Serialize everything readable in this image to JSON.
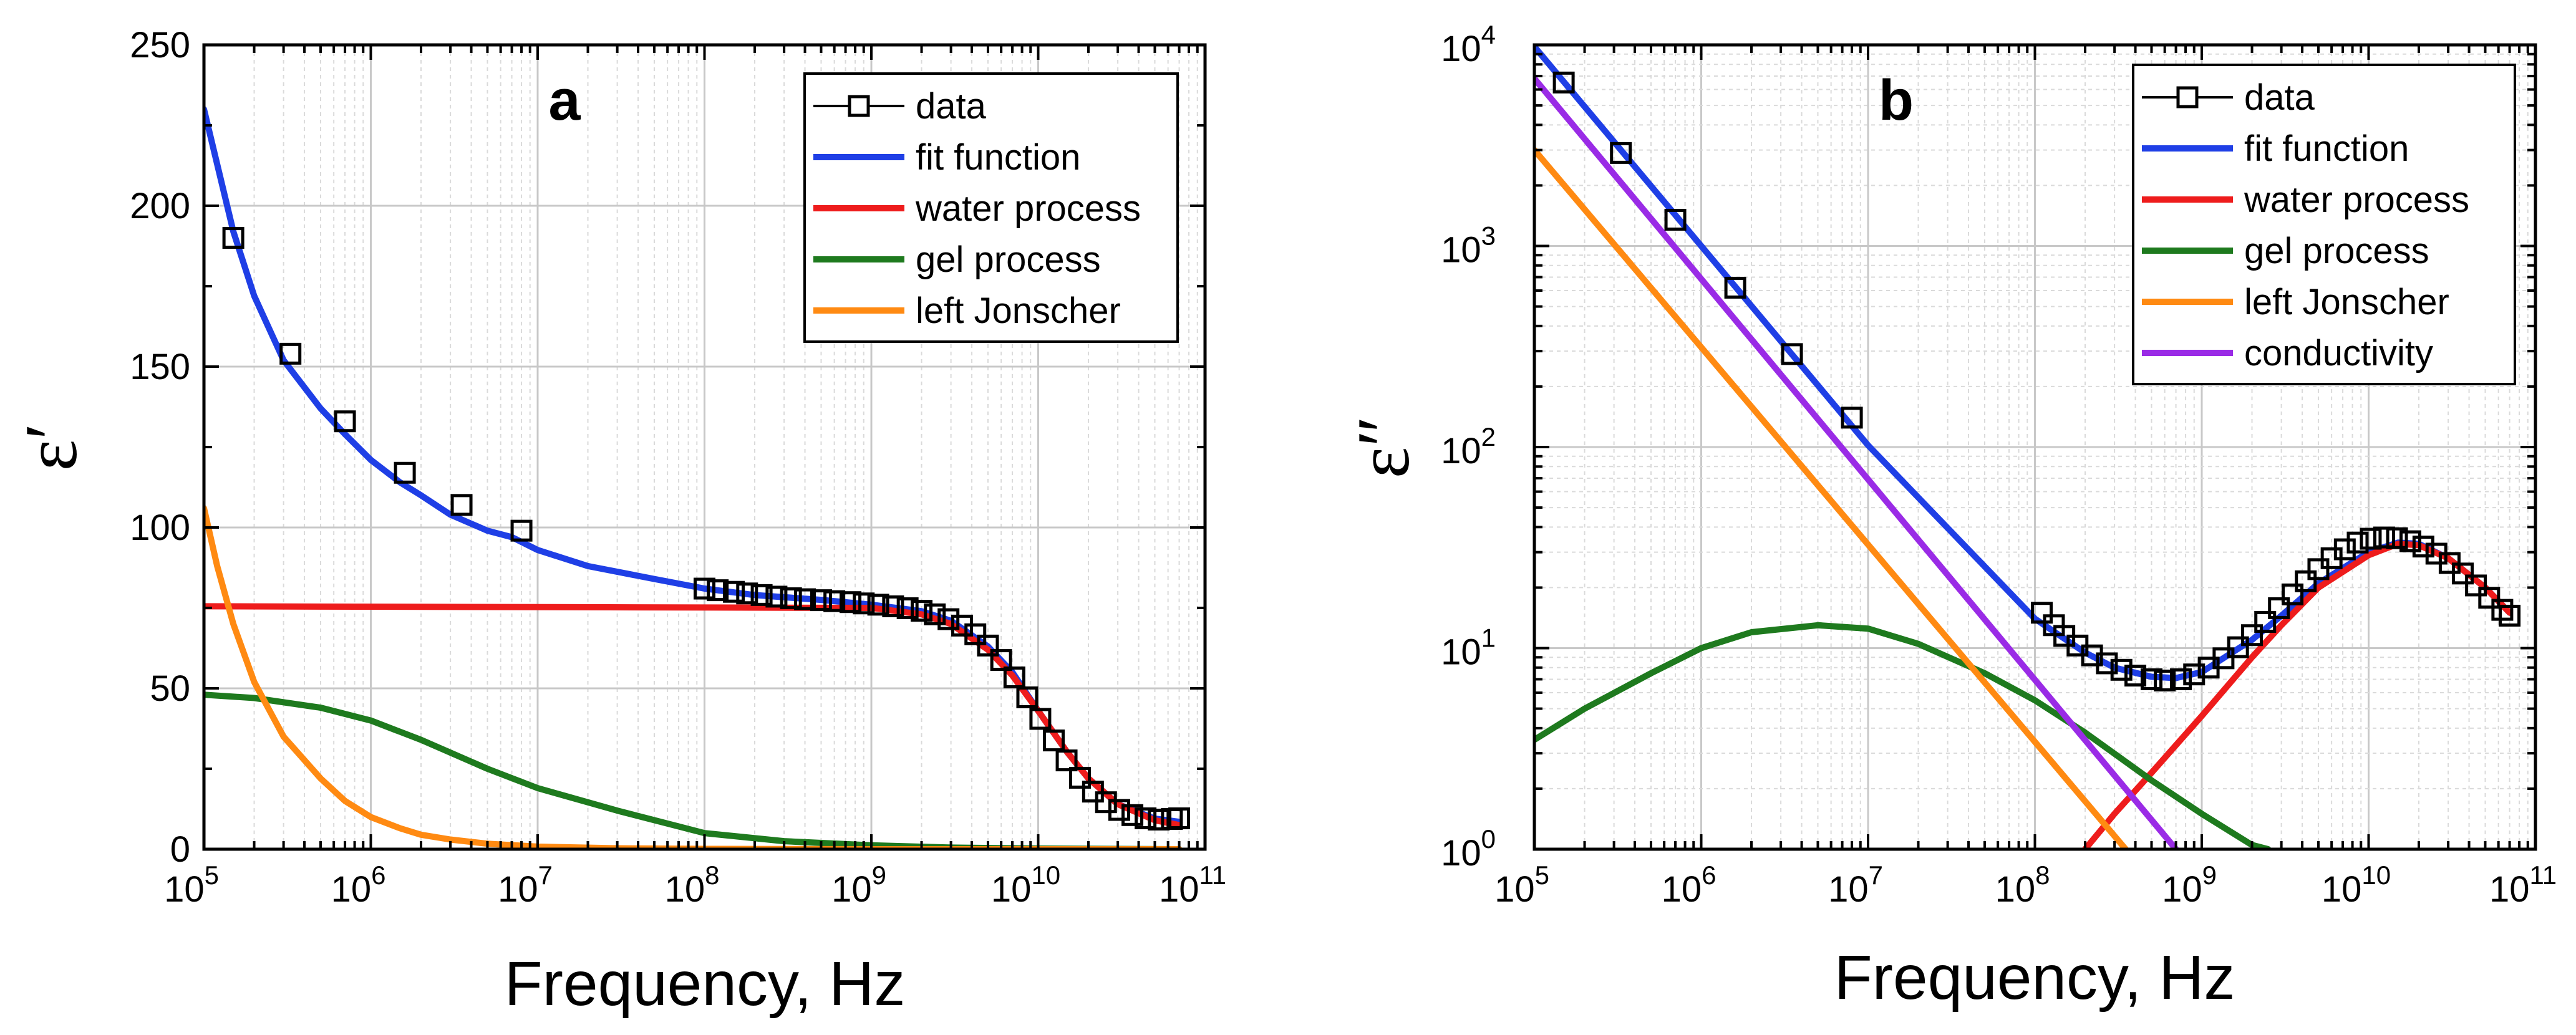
{
  "colors": {
    "data": "#000000",
    "fit": "#1f3fe6",
    "water": "#ee1c1c",
    "gel": "#1e7a1e",
    "jonscher": "#ff8a12",
    "conductivity": "#9a2be6"
  },
  "chart_data": [
    {
      "type": "line",
      "panel_label": "a",
      "xscale": "log",
      "yscale": "linear",
      "xlabel": "Frequency, Hz",
      "ylabel": "ε′",
      "xlim": [
        100000,
        100000000000
      ],
      "ylim": [
        0,
        250
      ],
      "x_ticks": [
        {
          "v": 100000,
          "base": "10",
          "exp": "5"
        },
        {
          "v": 1000000,
          "base": "10",
          "exp": "6"
        },
        {
          "v": 10000000,
          "base": "10",
          "exp": "7"
        },
        {
          "v": 100000000,
          "base": "10",
          "exp": "8"
        },
        {
          "v": 1000000000,
          "base": "10",
          "exp": "9"
        },
        {
          "v": 10000000000,
          "base": "10",
          "exp": "10"
        },
        {
          "v": 100000000000,
          "base": "10",
          "exp": "11"
        }
      ],
      "y_ticks": [
        {
          "v": 0,
          "label": "0"
        },
        {
          "v": 50,
          "label": "50"
        },
        {
          "v": 100,
          "label": "100"
        },
        {
          "v": 150,
          "label": "150"
        },
        {
          "v": 200,
          "label": "200"
        },
        {
          "v": 250,
          "label": "250"
        }
      ],
      "grid": true,
      "legend_position": "top-right",
      "legend": [
        {
          "label": "data",
          "style": "marker",
          "color_key": "data"
        },
        {
          "label": "fit function",
          "style": "line",
          "color_key": "fit"
        },
        {
          "label": "water process",
          "style": "line",
          "color_key": "water"
        },
        {
          "label": "gel process",
          "style": "line",
          "color_key": "gel"
        },
        {
          "label": "left Jonscher",
          "style": "line",
          "color_key": "jonscher"
        }
      ],
      "series": [
        {
          "name": "data",
          "style": "marker",
          "color_key": "data",
          "x": [
            150000,
            330000,
            700000,
            1600000,
            3500000,
            8000000,
            100000000,
            120000000,
            150000000,
            180000000,
            220000000,
            270000000,
            330000000,
            400000000,
            500000000,
            600000000,
            750000000,
            900000000,
            1100000000,
            1350000000,
            1650000000,
            2000000000,
            2400000000,
            2900000000,
            3500000000,
            4200000000,
            5000000000,
            6000000000,
            7200000000,
            8600000000,
            10300000000,
            12400000000,
            14800000000,
            17800000000,
            21300000000,
            25500000000,
            30600000000,
            36700000000,
            44000000000,
            52800000000,
            63300000000,
            70000000000
          ],
          "y": [
            190,
            154,
            133,
            117,
            107,
            99,
            81,
            80.5,
            80,
            79.5,
            79,
            78.5,
            78,
            77.7,
            77.4,
            77.1,
            76.8,
            76.4,
            76,
            75.5,
            74.9,
            74.1,
            73,
            71.5,
            69.5,
            66.8,
            63.3,
            58.8,
            53.4,
            47.2,
            40.5,
            33.8,
            27.6,
            22.2,
            17.9,
            14.6,
            12.2,
            10.6,
            9.6,
            9.2,
            9.4,
            9.6
          ]
        },
        {
          "name": "fit function",
          "style": "line",
          "color_key": "fit",
          "x": [
            100000,
            150000,
            200000,
            300000,
            500000,
            700000,
            1000000,
            1500000,
            2000000,
            3000000,
            5000000,
            7000000,
            10000000,
            20000000,
            50000000,
            100000000,
            200000000,
            500000000,
            1000000000,
            2000000000,
            3000000000,
            5000000000,
            7000000000,
            10000000000,
            15000000000,
            20000000000,
            30000000000,
            50000000000,
            70000000000
          ],
          "y": [
            230,
            192,
            172,
            152,
            137,
            129,
            121,
            114,
            110,
            104,
            99,
            97,
            93,
            88,
            84,
            81,
            79,
            77.5,
            76,
            74,
            71,
            63,
            55,
            43,
            30,
            22,
            14,
            9.5,
            8.5
          ]
        },
        {
          "name": "water process",
          "style": "line",
          "color_key": "water",
          "x": [
            100000,
            1000000000,
            2000000000,
            3000000000,
            5000000000,
            7000000000,
            10000000000,
            15000000000,
            20000000000,
            30000000000,
            50000000000,
            70000000000
          ],
          "y": [
            75.5,
            75,
            73,
            70,
            62,
            54,
            43,
            30,
            22,
            14,
            9,
            7.5
          ]
        },
        {
          "name": "gel process",
          "style": "line",
          "color_key": "gel",
          "x": [
            100000,
            200000,
            500000,
            1000000,
            2000000,
            5000000,
            10000000,
            30000000,
            100000000,
            300000000,
            1000000000,
            3000000000,
            10000000000,
            70000000000
          ],
          "y": [
            48,
            47,
            44,
            40,
            34,
            25,
            19,
            12,
            5,
            2.5,
            1.2,
            0.5,
            0.2,
            0
          ]
        },
        {
          "name": "left Jonscher",
          "style": "line",
          "color_key": "jonscher",
          "x": [
            100000,
            120000,
            150000,
            200000,
            300000,
            500000,
            700000,
            1000000,
            1500000,
            2000000,
            3000000,
            5000000,
            10000000,
            30000000,
            100000000,
            1000000000,
            70000000000
          ],
          "y": [
            106,
            88,
            70,
            52,
            35,
            22,
            15,
            10,
            6.5,
            4.5,
            3,
            1.7,
            0.8,
            0.3,
            0.1,
            0,
            0
          ]
        }
      ]
    },
    {
      "type": "line",
      "panel_label": "b",
      "xscale": "log",
      "yscale": "log",
      "xlabel": "Frequency, Hz",
      "ylabel": "ε″",
      "xlim": [
        100000,
        100000000000
      ],
      "ylim": [
        1,
        10000
      ],
      "x_ticks": [
        {
          "v": 100000,
          "base": "10",
          "exp": "5"
        },
        {
          "v": 1000000,
          "base": "10",
          "exp": "6"
        },
        {
          "v": 10000000,
          "base": "10",
          "exp": "7"
        },
        {
          "v": 100000000,
          "base": "10",
          "exp": "8"
        },
        {
          "v": 1000000000,
          "base": "10",
          "exp": "9"
        },
        {
          "v": 10000000000,
          "base": "10",
          "exp": "10"
        },
        {
          "v": 100000000000,
          "base": "10",
          "exp": "11"
        }
      ],
      "y_ticks": [
        {
          "v": 1,
          "base": "10",
          "exp": "0"
        },
        {
          "v": 10,
          "base": "10",
          "exp": "1"
        },
        {
          "v": 100,
          "base": "10",
          "exp": "2"
        },
        {
          "v": 1000,
          "base": "10",
          "exp": "3"
        },
        {
          "v": 10000,
          "base": "10",
          "exp": "4"
        }
      ],
      "grid": true,
      "legend_position": "top-right",
      "legend": [
        {
          "label": "data",
          "style": "marker",
          "color_key": "data"
        },
        {
          "label": "fit function",
          "style": "line",
          "color_key": "fit"
        },
        {
          "label": "water process",
          "style": "line",
          "color_key": "water"
        },
        {
          "label": "gel process",
          "style": "line",
          "color_key": "gel"
        },
        {
          "label": "left Jonscher",
          "style": "line",
          "color_key": "jonscher"
        },
        {
          "label": "conductivity",
          "style": "line",
          "color_key": "conductivity"
        }
      ],
      "series": [
        {
          "name": "data",
          "style": "marker",
          "color_key": "data",
          "x": [
            150000,
            330000,
            700000,
            1600000,
            3500000,
            8000000,
            110000000,
            130000000,
            150000000,
            180000000,
            220000000,
            270000000,
            330000000,
            400000000,
            500000000,
            600000000,
            750000000,
            900000000,
            1100000000,
            1350000000,
            1650000000,
            2000000000,
            2400000000,
            2900000000,
            3500000000,
            4200000000,
            5000000000,
            6000000000,
            7200000000,
            8600000000,
            10300000000,
            12400000000,
            14800000000,
            17800000000,
            21300000000,
            25500000000,
            30600000000,
            36700000000,
            44000000000,
            52800000000,
            63300000000,
            70000000000
          ],
          "y": [
            6500,
            2900,
            1350,
            620,
            290,
            140,
            15,
            13,
            11.5,
            10.3,
            9.2,
            8.4,
            7.8,
            7.3,
            7.0,
            6.9,
            7.0,
            7.4,
            8.0,
            8.9,
            10.1,
            11.6,
            13.5,
            15.8,
            18.5,
            21.5,
            24.7,
            28,
            31,
            33.5,
            35,
            35.5,
            35.2,
            34,
            32,
            29.5,
            26.5,
            23.5,
            20.5,
            17.8,
            15.5,
            14.5
          ]
        },
        {
          "name": "fit function",
          "style": "line",
          "color_key": "fit",
          "x": [
            100000,
            1000000,
            10000000,
            100000000,
            200000000,
            300000000,
            500000000,
            700000000,
            1000000000,
            2000000000,
            3000000000,
            5000000000,
            10000000000,
            15000000000,
            20000000000,
            30000000000,
            50000000000,
            70000000000
          ],
          "y": [
            9800,
            1000,
            102,
            14,
            9.5,
            8,
            7.2,
            7.1,
            7.6,
            11,
            14.5,
            21,
            30,
            33.5,
            33,
            28,
            20,
            15
          ]
        },
        {
          "name": "water process",
          "style": "line",
          "color_key": "water",
          "x": [
            200000000,
            300000000,
            500000000,
            1000000000,
            2000000000,
            3000000000,
            5000000000,
            10000000000,
            15000000000,
            20000000000,
            30000000000,
            50000000000,
            70000000000
          ],
          "y": [
            1,
            1.5,
            2.4,
            4.6,
            9,
            13,
            20,
            29,
            33,
            32.5,
            28,
            20,
            15
          ]
        },
        {
          "name": "gel process",
          "style": "line",
          "color_key": "gel",
          "x": [
            100000,
            200000,
            500000,
            1000000,
            2000000,
            5000000,
            10000000,
            20000000,
            50000000,
            100000000,
            200000000,
            500000000,
            1000000000,
            2000000000,
            2500000000
          ],
          "y": [
            3.5,
            5,
            7.5,
            10,
            12,
            13,
            12.5,
            10.5,
            7.5,
            5.5,
            3.8,
            2.2,
            1.5,
            1.05,
            1
          ]
        },
        {
          "name": "left Jonscher",
          "style": "line",
          "color_key": "jonscher",
          "x": [
            100000,
            350000000
          ],
          "y": [
            3000,
            1
          ]
        },
        {
          "name": "conductivity",
          "style": "line",
          "color_key": "conductivity",
          "x": [
            100000,
            700000000
          ],
          "y": [
            6800,
            1
          ]
        }
      ]
    }
  ]
}
